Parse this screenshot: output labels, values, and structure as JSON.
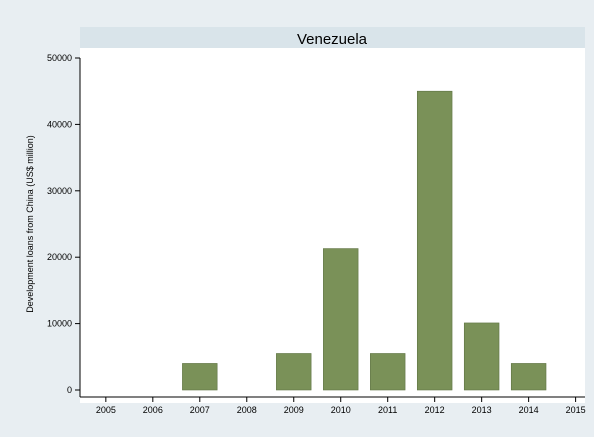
{
  "chart_data": {
    "type": "bar",
    "title": "Venezuela",
    "xlabel": "",
    "ylabel": "Development loans from China (US$ million)",
    "ylim": [
      0,
      50000
    ],
    "y_ticks": [
      0,
      10000,
      20000,
      30000,
      40000,
      50000
    ],
    "y_tick_labels": [
      "0",
      "10000",
      "20000",
      "30000",
      "40000",
      "50000"
    ],
    "xlim": [
      2004.45,
      2015.2
    ],
    "x_ticks": [
      2005,
      2006,
      2007,
      2008,
      2009,
      2010,
      2011,
      2012,
      2013,
      2014,
      2015
    ],
    "x_tick_labels": [
      "2005",
      "2006",
      "2007",
      "2008",
      "2009",
      "2010",
      "2011",
      "2012",
      "2013",
      "2014",
      "2015"
    ],
    "categories": [
      "2007",
      "2009",
      "2010",
      "2011",
      "2012",
      "2013",
      "2014"
    ],
    "x": [
      2007,
      2009,
      2010,
      2011,
      2012,
      2013,
      2014
    ],
    "values": [
      4000,
      5500,
      21300,
      5500,
      45000,
      10100,
      4000
    ],
    "grid": false,
    "legend": "none",
    "colors": {
      "outer_background": "#e8eef2",
      "plot_background": "#ffffff",
      "title_strip": "#d9e4ea",
      "bar_fill": "#7a9158",
      "bar_stroke": "#5f7444",
      "axis": "#000000"
    }
  }
}
